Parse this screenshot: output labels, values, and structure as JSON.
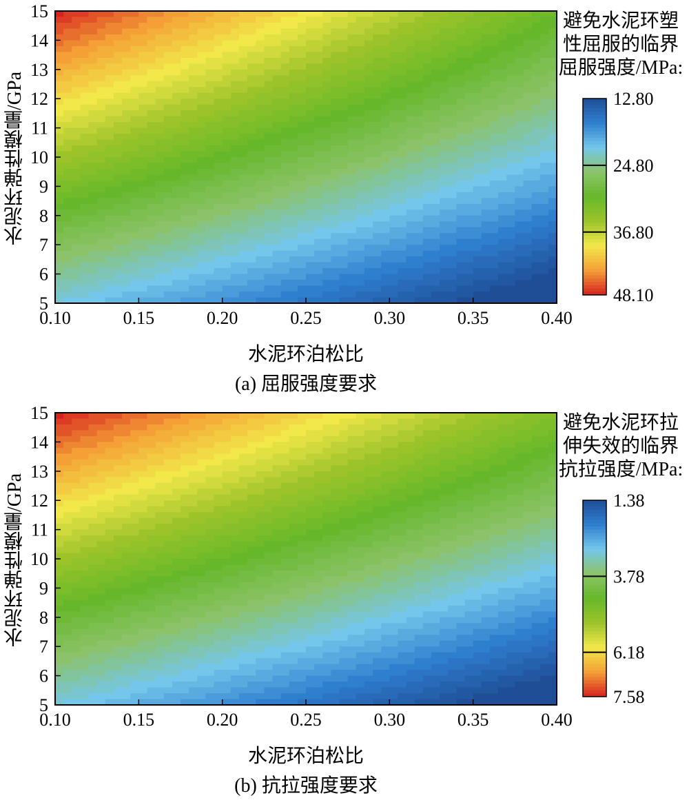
{
  "chart_data": [
    {
      "type": "heatmap",
      "subtype": "filled-contour",
      "xlabel": "水泥环泊松比",
      "ylabel": "水泥环弹性模量/GPa",
      "caption": "(a) 屈服强度要求",
      "x_ticks": [
        "0.10",
        "0.15",
        "0.20",
        "0.25",
        "0.30",
        "0.35",
        "0.40"
      ],
      "y_ticks": [
        "5",
        "6",
        "7",
        "8",
        "9",
        "10",
        "11",
        "12",
        "13",
        "14",
        "15"
      ],
      "xlim": [
        0.1,
        0.4
      ],
      "ylim": [
        5,
        15
      ],
      "colorbar": {
        "title_lines": [
          "避免水泥环塑",
          "性屈服的临界",
          "屈服强度/MPa:"
        ],
        "tick_labels": [
          "12.80",
          "24.80",
          "36.80",
          "48.10"
        ],
        "tick_values": [
          12.8,
          24.8,
          36.8,
          48.1
        ],
        "min": 12.8,
        "max": 48.1,
        "orientation": "top-low-bottom-high",
        "colormap": [
          "#1f4e96",
          "#2f7fcf",
          "#74c7ea",
          "#8cc36a",
          "#66b82a",
          "#9cc42a",
          "#f2e84a",
          "#f4a036",
          "#d6221f"
        ]
      },
      "corner_values": {
        "x0.10_y15": 48.1,
        "x0.40_y15": 31.0,
        "x0.10_y5": 22.0,
        "x0.40_y5": 12.8
      }
    },
    {
      "type": "heatmap",
      "subtype": "filled-contour",
      "xlabel": "水泥环泊松比",
      "ylabel": "水泥环弹性模量/GPa",
      "caption": "(b) 抗拉强度要求",
      "x_ticks": [
        "0.10",
        "0.15",
        "0.20",
        "0.25",
        "0.30",
        "0.35",
        "0.40"
      ],
      "y_ticks": [
        "5",
        "6",
        "7",
        "8",
        "9",
        "10",
        "11",
        "12",
        "13",
        "14",
        "15"
      ],
      "xlim": [
        0.1,
        0.4
      ],
      "ylim": [
        5,
        15
      ],
      "colorbar": {
        "title_lines": [
          "避免水泥环拉",
          "伸失效的临界",
          "抗拉强度/MPa:"
        ],
        "tick_labels": [
          "1.38",
          "3.78",
          "6.18",
          "7.58"
        ],
        "tick_values": [
          1.38,
          3.78,
          6.18,
          7.58
        ],
        "min": 1.38,
        "max": 7.58,
        "orientation": "top-low-bottom-high",
        "colormap": [
          "#1f4e96",
          "#2f7fcf",
          "#74c7ea",
          "#8cc36a",
          "#66b82a",
          "#9cc42a",
          "#f2e84a",
          "#f4a036",
          "#d6221f"
        ]
      },
      "corner_values": {
        "x0.10_y15": 7.58,
        "x0.40_y15": 4.9,
        "x0.10_y5": 3.0,
        "x0.40_y5": 1.38
      }
    }
  ]
}
